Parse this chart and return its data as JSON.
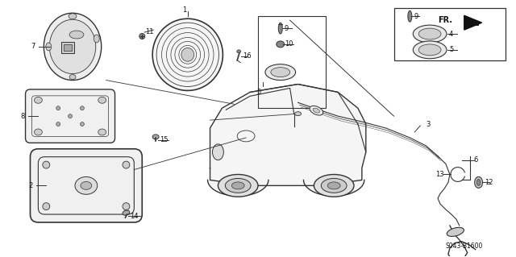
{
  "bg_color": "#ffffff",
  "line_color": "#333333",
  "fig_width": 6.4,
  "fig_height": 3.19,
  "dpi": 100,
  "part_number": "S043-B1600"
}
